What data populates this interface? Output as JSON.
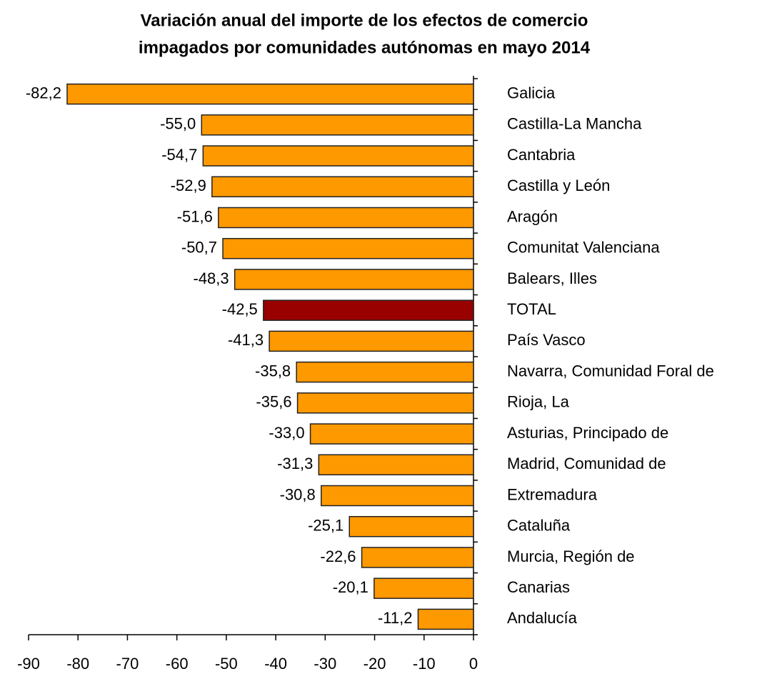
{
  "chart_data": {
    "type": "hbar",
    "title": [
      "Variación anual del importe de los efectos de comercio",
      "impagados por comunidades autónomas en mayo 2014"
    ],
    "categories": [
      "Galicia",
      "Castilla-La Mancha",
      "Cantabria",
      "Castilla y León",
      "Aragón",
      "Comunitat Valenciana",
      "Balears, Illes",
      "TOTAL",
      "País Vasco",
      "Navarra, Comunidad Foral de",
      "Rioja, La",
      "Asturias, Principado de",
      "Madrid, Comunidad de",
      "Extremadura",
      "Cataluña",
      "Murcia, Región de",
      "Canarias",
      "Andalucía"
    ],
    "values": [
      -82.2,
      -55.0,
      -54.7,
      -52.9,
      -51.6,
      -50.7,
      -48.3,
      -42.5,
      -41.3,
      -35.8,
      -35.6,
      -33.0,
      -31.3,
      -30.8,
      -25.1,
      -22.6,
      -20.1,
      -11.2
    ],
    "value_labels": [
      "-82,2",
      "-55,0",
      "-54,7",
      "-52,9",
      "-51,6",
      "-50,7",
      "-48,3",
      "-42,5",
      "-41,3",
      "-35,8",
      "-35,6",
      "-33,0",
      "-31,3",
      "-30,8",
      "-25,1",
      "-22,6",
      "-20,1",
      "-11,2"
    ],
    "colors": [
      "#ff9900",
      "#ff9900",
      "#ff9900",
      "#ff9900",
      "#ff9900",
      "#ff9900",
      "#ff9900",
      "#990000",
      "#ff9900",
      "#ff9900",
      "#ff9900",
      "#ff9900",
      "#ff9900",
      "#ff9900",
      "#ff9900",
      "#ff9900",
      "#ff9900",
      "#ff9900"
    ],
    "xlim": [
      -90,
      0
    ],
    "xticks": [
      -90,
      -80,
      -70,
      -60,
      -50,
      -40,
      -30,
      -20,
      -10,
      0
    ]
  }
}
